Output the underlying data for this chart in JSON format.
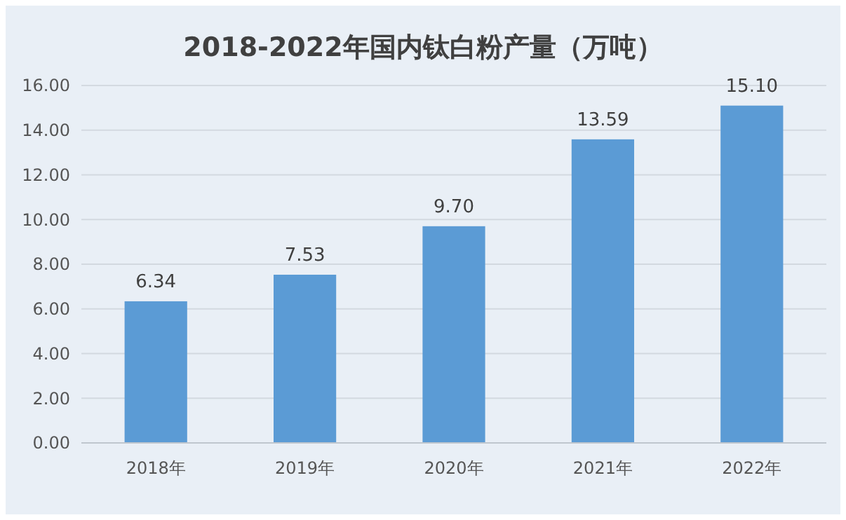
{
  "chart_data": {
    "type": "bar",
    "title": "2018-2022年国内钛白粉产量（万吨）",
    "categories": [
      "2018年",
      "2019年",
      "2020年",
      "2021年",
      "2022年"
    ],
    "values": [
      6.34,
      7.53,
      9.7,
      13.59,
      15.1
    ],
    "value_labels": [
      "6.34",
      "7.53",
      "9.70",
      "13.59",
      "15.10"
    ],
    "color": "#5b9bd5",
    "ylim": [
      0,
      16
    ],
    "yticks": [
      {
        "value": 0,
        "label": "0.00"
      },
      {
        "value": 2,
        "label": "2.00"
      },
      {
        "value": 4,
        "label": "4.00"
      },
      {
        "value": 6,
        "label": "6.00"
      },
      {
        "value": 8,
        "label": "8.00"
      },
      {
        "value": 10,
        "label": "10.00"
      },
      {
        "value": 12,
        "label": "12.00"
      },
      {
        "value": 14,
        "label": "14.00"
      },
      {
        "value": 16,
        "label": "16.00"
      }
    ],
    "grid": "y"
  }
}
